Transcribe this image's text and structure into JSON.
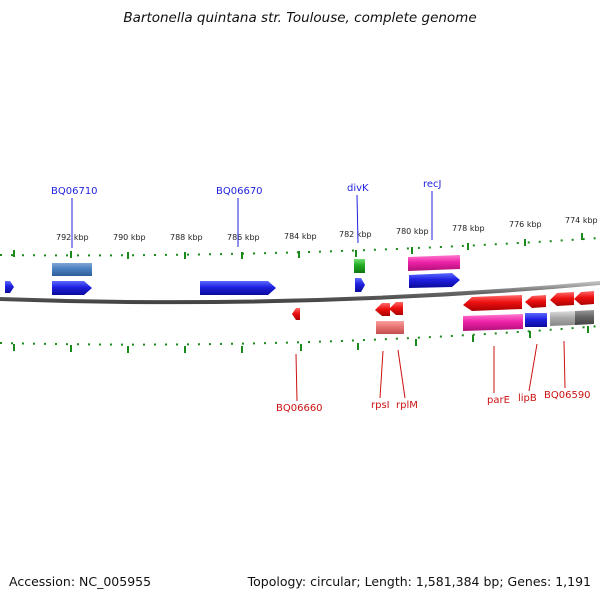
{
  "map": {
    "title": "Bartonella quintana str. Toulouse, complete genome",
    "accession": "Accession: NC_005955",
    "stats": "Topology: circular; Length: 1,581,384 bp; Genes: 1,191"
  },
  "scale": {
    "unit": "kbp",
    "ticks": [
      {
        "kbp": 792,
        "label": "792 kbp"
      },
      {
        "kbp": 790,
        "label": "790 kbp"
      },
      {
        "kbp": 788,
        "label": "788 kbp"
      },
      {
        "kbp": 786,
        "label": "786 kbp"
      },
      {
        "kbp": 784,
        "label": "784 kbp"
      },
      {
        "kbp": 782,
        "label": "782 kbp"
      },
      {
        "kbp": 780,
        "label": "780 kbp"
      },
      {
        "kbp": 778,
        "label": "778 kbp"
      },
      {
        "kbp": 776,
        "label": "776 kbp"
      },
      {
        "kbp": 774,
        "label": "774 kbp"
      }
    ]
  },
  "genes": {
    "forward": [
      {
        "name": "BQ06710",
        "color": "#1f1fe0"
      },
      {
        "name": "BQ06670",
        "color": "#1f1fe0"
      },
      {
        "name": "divK",
        "color": "#1f1fe0"
      },
      {
        "name": "recJ",
        "color": "#1f1fe0"
      }
    ],
    "reverse": [
      {
        "name": "BQ06660",
        "color": "#cc1111"
      },
      {
        "name": "rpsI",
        "color": "#cc1111"
      },
      {
        "name": "rplM",
        "color": "#cc1111"
      },
      {
        "name": "parE",
        "color": "#cc1111"
      },
      {
        "name": "lipB",
        "color": "#cc1111"
      },
      {
        "name": "BQ06590",
        "color": "#cc1111"
      }
    ]
  },
  "colors": {
    "forward_label": "#1f1fe0",
    "reverse_label": "#cc1111",
    "backbone": "#777777",
    "ticks": "#1a8a1a"
  }
}
